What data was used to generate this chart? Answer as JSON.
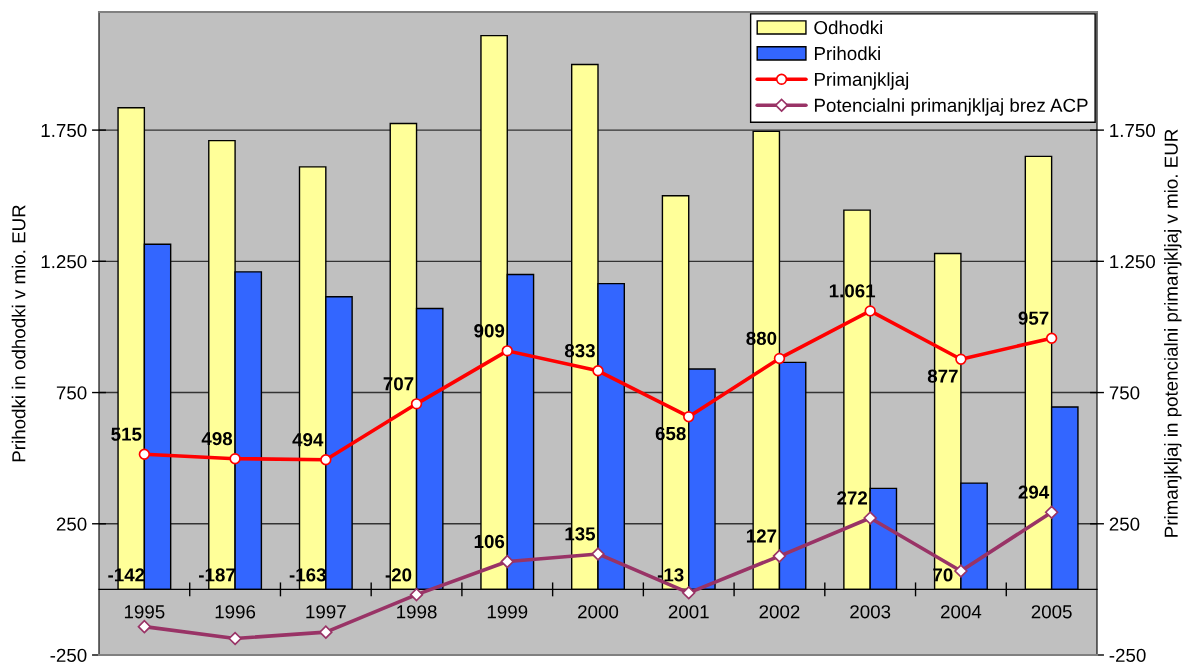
{
  "chart_data": {
    "type": "bar",
    "categories": [
      "1995",
      "1996",
      "1997",
      "1998",
      "1999",
      "2000",
      "2001",
      "2002",
      "2003",
      "2004",
      "2005"
    ],
    "ylabel": "Prihodki in odhodki v mio. EUR",
    "y2label": "Primanjkljaj in potencialni primanjkljaj v mio. EUR",
    "ylim": [
      -250,
      2200
    ],
    "yticks": [
      -250,
      250,
      750,
      {
        "value": 1250,
        "label": "1.250"
      },
      {
        "value": 1750,
        "label": "1.750"
      }
    ],
    "y2lim": [
      -250,
      2200
    ],
    "y2ticks": [
      -250,
      250,
      750,
      {
        "value": 1250,
        "label": "1.250"
      },
      {
        "value": 1750,
        "label": "1.750"
      }
    ],
    "grid": "y",
    "legend": "top right",
    "series": [
      {
        "name": "Odhodki",
        "color": "#ffff99",
        "values": [
          1835,
          1710,
          1610,
          1775,
          2110,
          2000,
          1500,
          1745,
          1445,
          1280,
          1650
        ]
      },
      {
        "name": "Prihodki",
        "color": "#3366ff",
        "values": [
          1315,
          1210,
          1115,
          1070,
          1200,
          1165,
          840,
          865,
          385,
          405,
          695
        ]
      },
      {
        "name": "Primanjkljaj",
        "type": "line",
        "color": "#ff0000",
        "marker": "circle",
        "values": [
          515,
          498,
          494,
          707,
          909,
          833,
          658,
          880,
          1061,
          877,
          957
        ],
        "value_labels": [
          "515",
          "498",
          "494",
          "707",
          "909",
          "833",
          "658",
          "880",
          "1.061",
          "877",
          "957"
        ]
      },
      {
        "name": "Potencialni primanjkljaj brez ACP",
        "type": "line",
        "color": "#993366",
        "marker": "diamond",
        "values": [
          -142,
          -187,
          -163,
          -20,
          106,
          135,
          -13,
          127,
          272,
          70,
          294
        ],
        "value_labels": [
          "-142",
          "-187",
          "-163",
          "-20",
          "106",
          "135",
          "-13",
          "127",
          "272",
          "70",
          "294"
        ]
      }
    ]
  }
}
